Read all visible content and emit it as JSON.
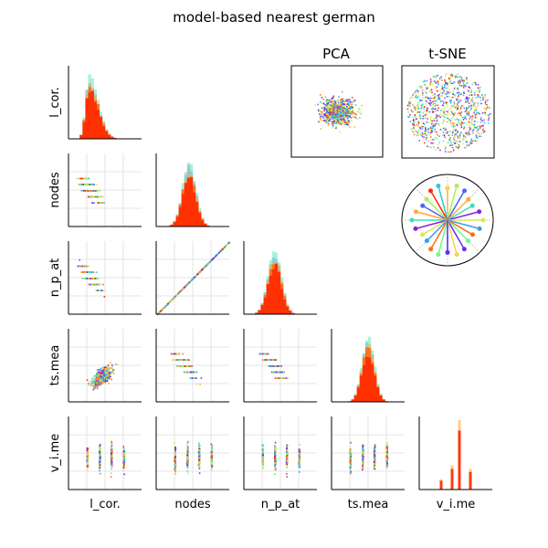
{
  "title": "model-based nearest german",
  "variables": [
    "l_cor.",
    "nodes",
    "n_p_at",
    "ts.mea",
    "v_i.me"
  ],
  "embedding_titles": {
    "pca": "PCA",
    "tsne": "t-SNE"
  },
  "palette": [
    "#ff2a00",
    "#ff6a14",
    "#ffaa33",
    "#ffd24d",
    "#d8e84f",
    "#a8f05c",
    "#6ff78a",
    "#3ee0b8",
    "#29c8e0",
    "#3a9cf2",
    "#4d64f5",
    "#6a2ff0",
    "#8a22d6"
  ],
  "chart_data": [
    {
      "type": "histogram",
      "var": "l_cor.",
      "shape": "right-skewed",
      "peak_fraction": 0.25
    },
    {
      "type": "histogram",
      "var": "nodes",
      "shape": "bell",
      "peak_fraction": 0.45
    },
    {
      "type": "histogram",
      "var": "n_p_at",
      "shape": "bell",
      "peak_fraction": 0.4
    },
    {
      "type": "histogram",
      "var": "ts.mea",
      "shape": "bell",
      "peak_fraction": 0.4
    },
    {
      "type": "histogram",
      "var": "v_i.me",
      "shape": "discrete-spikes",
      "spike_positions": [
        0.3,
        0.45,
        0.55,
        0.7
      ],
      "spike_heights": [
        0.15,
        0.35,
        1.0,
        0.3
      ]
    },
    {
      "type": "scatter",
      "x": "l_cor.",
      "y": "nodes",
      "correlation": "negative"
    },
    {
      "type": "scatter",
      "x": "l_cor.",
      "y": "n_p_at",
      "correlation": "negative"
    },
    {
      "type": "scatter",
      "x": "nodes",
      "y": "n_p_at",
      "correlation": "perfect-positive"
    },
    {
      "type": "scatter",
      "x": "l_cor.",
      "y": "ts.mea",
      "correlation": "positive"
    },
    {
      "type": "scatter",
      "x": "nodes",
      "y": "ts.mea",
      "correlation": "negative"
    },
    {
      "type": "scatter",
      "x": "n_p_at",
      "y": "ts.mea",
      "correlation": "negative"
    },
    {
      "type": "scatter",
      "x": "l_cor.",
      "y": "v_i.me",
      "correlation": "discrete-columns"
    },
    {
      "type": "scatter",
      "x": "nodes",
      "y": "v_i.me",
      "correlation": "discrete-columns"
    },
    {
      "type": "scatter",
      "x": "n_p_at",
      "y": "v_i.me",
      "correlation": "discrete-columns"
    },
    {
      "type": "scatter",
      "x": "ts.mea",
      "y": "v_i.me",
      "correlation": "discrete-columns"
    },
    {
      "type": "scatter",
      "name": "PCA",
      "shape": "blob"
    },
    {
      "type": "scatter",
      "name": "t-SNE",
      "shape": "clustered-disc"
    },
    {
      "type": "radial",
      "name": "color-key",
      "stems": 13
    }
  ]
}
